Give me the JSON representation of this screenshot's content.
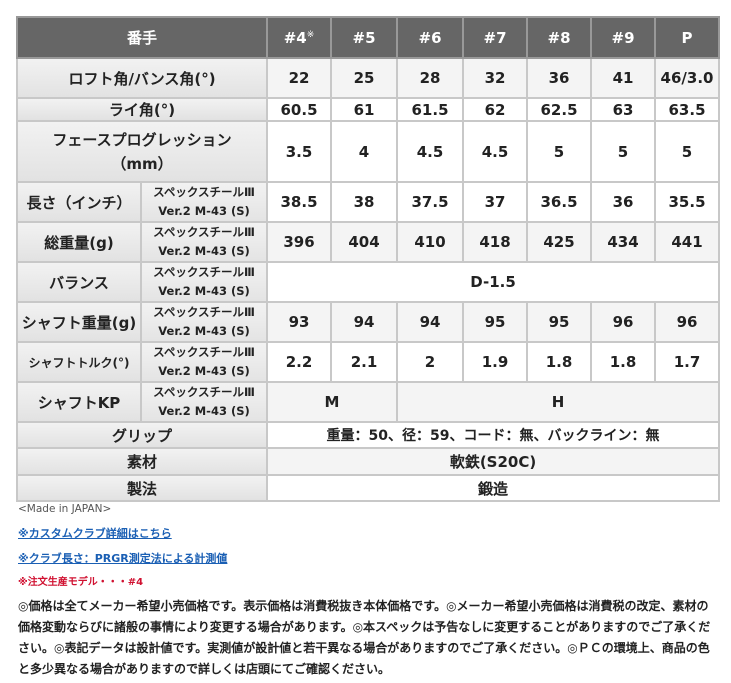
{
  "header": {
    "label": "番手",
    "columns": [
      "#4",
      "#5",
      "#6",
      "#7",
      "#8",
      "#9",
      "P"
    ],
    "note_mark": "※"
  },
  "shaft": "スペックスチールⅢ Ver.2 M-43 (S)",
  "shaft_line1": "スペックスチールⅢ",
  "shaft_line2": "Ver.2 M-43 (S)",
  "rows": {
    "loft": {
      "label": "ロフト角/バンス角(°)",
      "values": [
        "22",
        "25",
        "28",
        "32",
        "36",
        "41",
        "46/3.0"
      ]
    },
    "lie": {
      "label": "ライ角(°)",
      "values": [
        "60.5",
        "61",
        "61.5",
        "62",
        "62.5",
        "63",
        "63.5"
      ]
    },
    "face": {
      "label1": "フェースプログレッション",
      "label2": "（mm）",
      "values": [
        "3.5",
        "4",
        "4.5",
        "4.5",
        "5",
        "5",
        "5"
      ]
    },
    "length": {
      "label": "長さ（インチ）",
      "values": [
        "38.5",
        "38",
        "37.5",
        "37",
        "36.5",
        "36",
        "35.5"
      ]
    },
    "weight": {
      "label": "総重量(g)",
      "values": [
        "396",
        "404",
        "410",
        "418",
        "425",
        "434",
        "441"
      ]
    },
    "balance": {
      "label": "バランス",
      "value": "D-1.5"
    },
    "shaft_weight": {
      "label": "シャフト重量(g)",
      "values": [
        "93",
        "94",
        "94",
        "95",
        "95",
        "96",
        "96"
      ]
    },
    "torque": {
      "label": "シャフトトルク(°)",
      "values": [
        "2.2",
        "2.1",
        "2",
        "1.9",
        "1.8",
        "1.8",
        "1.7"
      ]
    },
    "kp": {
      "label": "シャフトKP",
      "values": [
        "M",
        "H"
      ]
    },
    "grip": {
      "label": "グリップ",
      "value": "重量：50、径：59、コード：無、バックライン：無"
    },
    "material": {
      "label": "素材",
      "value": "軟鉄(S20C)"
    },
    "method": {
      "label": "製法",
      "value": "鍛造"
    }
  },
  "notes": {
    "made": "<Made in JAPAN>",
    "link1": "※カスタムクラブ詳細はこちら",
    "link2": "※クラブ長さ：PRGR測定法による計測値",
    "order": "※注文生産モデル・・・#4",
    "disclaimer": "◎価格は全てメーカー希望小売価格です。表示価格は消費税抜き本体価格です。◎メーカー希望小売価格は消費税の改定、素材の価格変動ならびに諸般の事情により変更する場合があります。◎本スペックは予告なしに変更することがありますのでご了承ください。◎表記データは設計値です。実測値が設計値と若干異なる場合がありますのでご了承ください。◎ＰＣの環境上、商品の色と多少異なる場合がありますので詳しくは店頭にてご確認ください。"
  }
}
